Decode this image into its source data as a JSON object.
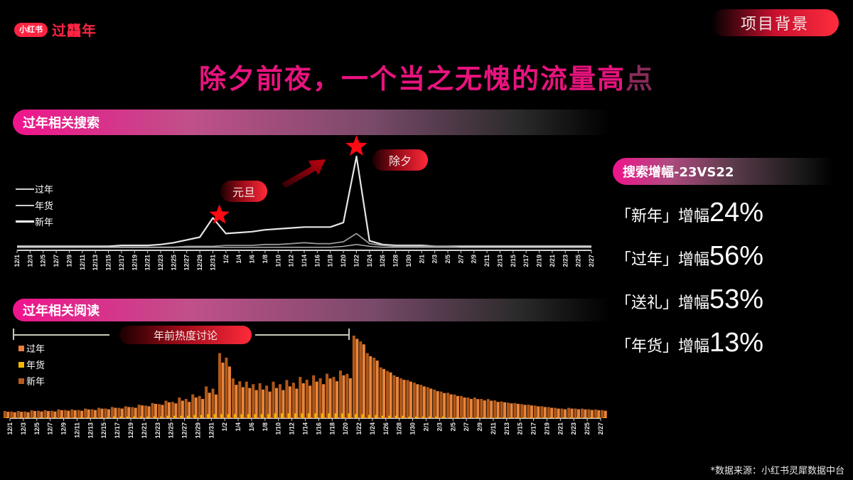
{
  "header": {
    "logo_badge": "小红书",
    "logo_text": "过龘年",
    "section_label": "项目背景",
    "title_main": "除夕前夜，一个当之无愧的流量高",
    "title_fade": "点"
  },
  "search_section": {
    "band_label": "过年相关搜索",
    "legend": [
      "过年",
      "年货",
      "新年"
    ],
    "tag_yuandan": "元旦",
    "tag_chuxi": "除夕"
  },
  "reading_section": {
    "band_label": "过年相关阅读",
    "range_label": "年前热度讨论",
    "legend": [
      {
        "label": "过年",
        "color": "#e8803a"
      },
      {
        "label": "年货",
        "color": "#f5b800"
      },
      {
        "label": "新年",
        "color": "#b85a1a"
      }
    ]
  },
  "growth_panel": {
    "band_label": "搜索增幅-23VS22",
    "items": [
      {
        "label": "「新年」增幅",
        "value": "24%"
      },
      {
        "label": "「过年」增幅",
        "value": "56%"
      },
      {
        "label": "「送礼」增幅",
        "value": "53%"
      },
      {
        "label": "「年货」增幅",
        "value": "13%"
      }
    ]
  },
  "footer": {
    "source": "*数据来源：小红书灵犀数据中台"
  },
  "colors": {
    "accent_pink": "#e8137e",
    "accent_red": "#ff2442",
    "bar_main": "#c8641e",
    "bar_gold": "#f5b800"
  },
  "chart_data": [
    {
      "type": "line",
      "title": "过年相关搜索",
      "xlabel": "",
      "ylabel": "",
      "grid": false,
      "legend_position": "left",
      "x": [
        "12/1",
        "12/3",
        "12/5",
        "12/7",
        "12/9",
        "12/11",
        "12/13",
        "12/15",
        "12/17",
        "12/19",
        "12/21",
        "12/23",
        "12/25",
        "12/27",
        "12/29",
        "12/31",
        "1/2",
        "1/4",
        "1/6",
        "1/8",
        "1/10",
        "1/12",
        "1/14",
        "1/16",
        "1/18",
        "1/20",
        "1/22",
        "1/24",
        "1/26",
        "1/28",
        "1/30",
        "2/1",
        "2/3",
        "2/5",
        "2/7",
        "2/9",
        "2/11",
        "2/13",
        "2/15",
        "2/17",
        "2/19",
        "2/21",
        "2/23",
        "2/25",
        "2/27"
      ],
      "series": [
        {
          "name": "过年",
          "values": [
            2,
            2,
            2,
            2,
            2,
            2,
            2,
            2,
            3,
            3,
            3,
            4,
            6,
            9,
            12,
            33,
            16,
            17,
            18,
            20,
            21,
            22,
            23,
            23,
            23,
            28,
            100,
            8,
            4,
            3,
            3,
            3,
            2,
            2,
            2,
            2,
            2,
            2,
            2,
            2,
            2,
            2,
            2,
            2,
            2
          ]
        },
        {
          "name": "年货",
          "values": [
            1,
            1,
            1,
            1,
            1,
            1,
            1,
            1,
            1,
            1,
            1,
            1,
            1,
            2,
            2,
            2,
            3,
            3,
            3,
            4,
            4,
            5,
            6,
            5,
            5,
            7,
            16,
            5,
            3,
            2,
            2,
            2,
            2,
            2,
            1,
            1,
            1,
            1,
            1,
            1,
            1,
            1,
            1,
            1,
            1
          ]
        },
        {
          "name": "新年",
          "values": [
            1,
            1,
            1,
            1,
            1,
            1,
            1,
            1,
            1,
            1,
            1,
            1,
            1,
            1,
            1,
            1,
            1,
            1,
            1,
            1,
            1,
            1,
            1,
            1,
            1,
            2,
            4,
            2,
            1,
            1,
            1,
            1,
            1,
            1,
            1,
            1,
            1,
            1,
            1,
            1,
            1,
            1,
            1,
            1,
            1
          ]
        }
      ],
      "annotations": [
        {
          "x": "1/1",
          "label": "元旦",
          "marker": "star"
        },
        {
          "x": "1/21",
          "label": "除夕",
          "marker": "star"
        }
      ]
    },
    {
      "type": "bar",
      "title": "过年相关阅读",
      "xlabel": "",
      "ylabel": "",
      "grid": false,
      "legend_position": "left",
      "annotation": {
        "label": "年前热度讨论",
        "range": [
          "12/1",
          "1/21"
        ]
      },
      "x": [
        "12/1",
        "12/3",
        "12/5",
        "12/7",
        "12/9",
        "12/11",
        "12/13",
        "12/15",
        "12/17",
        "12/19",
        "12/21",
        "12/23",
        "12/25",
        "12/27",
        "12/29",
        "12/31",
        "1/2",
        "1/4",
        "1/6",
        "1/8",
        "1/10",
        "1/12",
        "1/14",
        "1/16",
        "1/18",
        "1/20",
        "1/22",
        "1/24",
        "1/26",
        "1/28",
        "1/30",
        "2/1",
        "2/3",
        "2/5",
        "2/7",
        "2/9",
        "2/11",
        "2/13",
        "2/15",
        "2/17",
        "2/19",
        "2/21",
        "2/23",
        "2/25",
        "2/27"
      ],
      "series": [
        {
          "name": "过年",
          "values": [
            8,
            8,
            9,
            9,
            10,
            10,
            11,
            12,
            13,
            14,
            16,
            18,
            20,
            22,
            26,
            32,
            70,
            42,
            38,
            36,
            38,
            40,
            44,
            46,
            50,
            54,
            100,
            78,
            62,
            52,
            46,
            40,
            34,
            30,
            26,
            24,
            22,
            20,
            18,
            16,
            14,
            12,
            12,
            11,
            10
          ]
        },
        {
          "name": "年货",
          "values": [
            1,
            1,
            1,
            1,
            1,
            1,
            1,
            1,
            2,
            2,
            2,
            2,
            3,
            3,
            4,
            5,
            5,
            5,
            5,
            5,
            6,
            6,
            6,
            6,
            6,
            6,
            5,
            4,
            3,
            3,
            2,
            2,
            2,
            1,
            1,
            1,
            1,
            1,
            1,
            1,
            1,
            1,
            1,
            1,
            1
          ]
        },
        {
          "name": "新年",
          "values": [
            9,
            9,
            10,
            10,
            11,
            11,
            12,
            13,
            14,
            15,
            17,
            19,
            22,
            26,
            30,
            40,
            82,
            50,
            46,
            44,
            46,
            48,
            52,
            54,
            56,
            60,
            104,
            82,
            64,
            54,
            48,
            42,
            36,
            32,
            28,
            26,
            24,
            21,
            19,
            17,
            15,
            13,
            13,
            12,
            11
          ]
        }
      ]
    }
  ]
}
